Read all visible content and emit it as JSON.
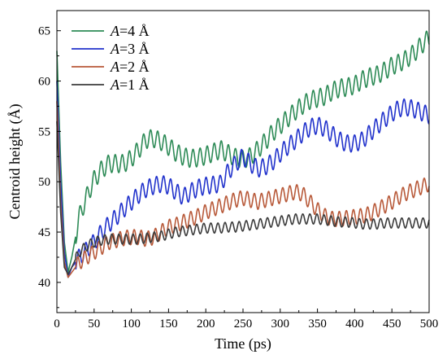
{
  "chart_data": {
    "type": "line",
    "title": "",
    "xlabel": "Time (ps)",
    "ylabel": "Centroid height (Å)",
    "xlim": [
      0,
      500
    ],
    "ylim": [
      37,
      67
    ],
    "xticks": [
      0,
      50,
      100,
      150,
      200,
      250,
      300,
      350,
      400,
      450,
      500
    ],
    "yticks": [
      40,
      45,
      50,
      55,
      60,
      65
    ],
    "grid": false,
    "legend_position": "top-left",
    "series": [
      {
        "name": "A=4 Å",
        "legend_italic": "A",
        "legend_rest": "=4 Å",
        "color": "#2e8b57",
        "x": [
          0,
          5,
          10,
          15,
          20,
          25,
          30,
          40,
          50,
          60,
          70,
          80,
          90,
          100,
          110,
          120,
          130,
          140,
          150,
          160,
          170,
          180,
          190,
          200,
          210,
          220,
          230,
          240,
          250,
          260,
          270,
          280,
          290,
          300,
          310,
          320,
          330,
          340,
          350,
          360,
          370,
          380,
          390,
          400,
          410,
          420,
          430,
          440,
          450,
          460,
          470,
          480,
          490,
          500
        ],
        "y": [
          63,
          52,
          44,
          41,
          42.5,
          44.5,
          46.5,
          48.5,
          50.2,
          51.2,
          51.8,
          51.8,
          51.8,
          52.3,
          53.2,
          54.2,
          54.3,
          54,
          53.5,
          52.9,
          52.5,
          52.3,
          52.4,
          52.6,
          52.9,
          53.2,
          52.8,
          52.4,
          52.2,
          52.5,
          53.2,
          54,
          54.9,
          55.6,
          56.3,
          57,
          57.6,
          58.1,
          58.3,
          58.5,
          59,
          59.3,
          59.4,
          59.6,
          60.1,
          60.4,
          60.6,
          61,
          61.5,
          61.8,
          62.2,
          62.8,
          63.6,
          64.3
        ]
      },
      {
        "name": "A=3 Å",
        "legend_italic": "A",
        "legend_rest": "=3 Å",
        "color": "#2233cc",
        "x": [
          0,
          5,
          10,
          15,
          20,
          25,
          30,
          40,
          50,
          60,
          70,
          80,
          90,
          100,
          110,
          120,
          130,
          140,
          150,
          160,
          170,
          180,
          190,
          200,
          210,
          220,
          230,
          240,
          250,
          260,
          270,
          280,
          290,
          300,
          310,
          320,
          330,
          340,
          350,
          360,
          370,
          380,
          390,
          400,
          410,
          420,
          430,
          440,
          450,
          460,
          470,
          480,
          490,
          500
        ],
        "y": [
          60,
          50,
          43,
          40.5,
          41.5,
          42,
          42.5,
          43.2,
          44,
          45,
          45.8,
          46.5,
          47.3,
          48,
          48.7,
          49.3,
          49.6,
          49.8,
          49.6,
          49,
          48.5,
          49,
          49.4,
          49.6,
          49.7,
          49.8,
          51,
          51.8,
          52.5,
          51.8,
          51.3,
          51.5,
          52,
          52.8,
          53.5,
          54.1,
          54.8,
          55.4,
          55.6,
          55.3,
          54.7,
          54.1,
          53.8,
          53.8,
          54.1,
          54.8,
          55.5,
          56.2,
          56.8,
          57.3,
          57.4,
          57.2,
          56.9,
          56.6
        ]
      },
      {
        "name": "A=2 Å",
        "legend_italic": "A",
        "legend_rest": "=2 Å",
        "color": "#b85a3a",
        "x": [
          0,
          5,
          10,
          15,
          20,
          25,
          30,
          40,
          50,
          60,
          70,
          80,
          90,
          100,
          110,
          120,
          130,
          140,
          150,
          160,
          170,
          180,
          190,
          200,
          210,
          220,
          230,
          240,
          250,
          260,
          270,
          280,
          290,
          300,
          310,
          320,
          330,
          340,
          350,
          360,
          370,
          380,
          390,
          400,
          410,
          420,
          430,
          440,
          450,
          460,
          470,
          480,
          490,
          500
        ],
        "y": [
          58,
          48,
          42,
          40.5,
          41,
          41.5,
          42,
          42.5,
          43,
          43.5,
          44,
          44.2,
          44.4,
          44.5,
          44.5,
          44.3,
          44.5,
          45,
          45.5,
          45.7,
          46,
          46.3,
          46.6,
          47,
          47.3,
          47.6,
          47.9,
          48.2,
          48.4,
          48.2,
          48,
          48.2,
          48.4,
          48.6,
          48.8,
          49,
          48.8,
          48,
          47.2,
          46.6,
          46.3,
          46.3,
          46.4,
          46.5,
          46.6,
          46.8,
          47.2,
          47.6,
          48,
          48.5,
          48.9,
          49.2,
          49.5,
          49.8
        ]
      },
      {
        "name": "A=1 Å",
        "legend_italic": "A",
        "legend_rest": "=1 Å",
        "color": "#3c3c3c",
        "x": [
          0,
          5,
          10,
          15,
          20,
          25,
          30,
          40,
          50,
          60,
          70,
          80,
          90,
          100,
          110,
          120,
          130,
          140,
          150,
          160,
          170,
          180,
          190,
          200,
          210,
          220,
          230,
          240,
          250,
          260,
          270,
          280,
          290,
          300,
          310,
          320,
          330,
          340,
          350,
          360,
          370,
          380,
          390,
          400,
          410,
          420,
          430,
          440,
          450,
          460,
          470,
          480,
          490,
          500
        ],
        "y": [
          56,
          47,
          41.5,
          40.8,
          41.5,
          42.3,
          43,
          43.6,
          44,
          44.2,
          44.3,
          44.3,
          44.3,
          44.3,
          44.3,
          44.4,
          44.5,
          44.6,
          44.8,
          45,
          45.1,
          45.2,
          45.3,
          45.4,
          45.4,
          45.4,
          45.5,
          45.5,
          45.6,
          45.7,
          45.8,
          45.9,
          46,
          46.1,
          46.2,
          46.3,
          46.3,
          46.3,
          46.3,
          46.2,
          46.1,
          46,
          46,
          45.9,
          45.8,
          45.8,
          45.8,
          45.9,
          45.9,
          45.9,
          45.9,
          45.9,
          45.9,
          45.9
        ]
      }
    ]
  }
}
